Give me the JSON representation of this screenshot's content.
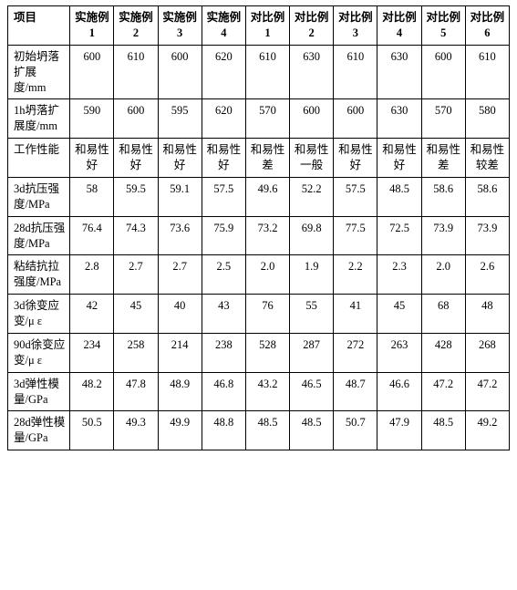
{
  "table": {
    "columns": [
      "项目",
      "实施例1",
      "实施例2",
      "实施例3",
      "实施例4",
      "对比例1",
      "对比例2",
      "对比例3",
      "对比例4",
      "对比例5",
      "对比例6"
    ],
    "rows": [
      {
        "label": "初始坍落扩展度/mm",
        "vals": [
          "600",
          "610",
          "600",
          "620",
          "610",
          "630",
          "610",
          "630",
          "600",
          "610"
        ]
      },
      {
        "label": "1h坍落扩展度/mm",
        "vals": [
          "590",
          "600",
          "595",
          "620",
          "570",
          "600",
          "600",
          "630",
          "570",
          "580"
        ]
      },
      {
        "label": "工作性能",
        "vals": [
          "和易性好",
          "和易性好",
          "和易性好",
          "和易性好",
          "和易性差",
          "和易性一般",
          "和易性好",
          "和易性好",
          "和易性差",
          "和易性较差"
        ]
      },
      {
        "label": "3d抗压强度/MPa",
        "vals": [
          "58",
          "59.5",
          "59.1",
          "57.5",
          "49.6",
          "52.2",
          "57.5",
          "48.5",
          "58.6",
          "58.6"
        ]
      },
      {
        "label": "28d抗压强度/MPa",
        "vals": [
          "76.4",
          "74.3",
          "73.6",
          "75.9",
          "73.2",
          "69.8",
          "77.5",
          "72.5",
          "73.9",
          "73.9"
        ]
      },
      {
        "label": "粘结抗拉强度/MPa",
        "vals": [
          "2.8",
          "2.7",
          "2.7",
          "2.5",
          "2.0",
          "1.9",
          "2.2",
          "2.3",
          "2.0",
          "2.6"
        ]
      },
      {
        "label": "3d徐变应变/μ ε",
        "vals": [
          "42",
          "45",
          "40",
          "43",
          "76",
          "55",
          "41",
          "45",
          "68",
          "48"
        ]
      },
      {
        "label": "90d徐变应变/μ ε",
        "vals": [
          "234",
          "258",
          "214",
          "238",
          "528",
          "287",
          "272",
          "263",
          "428",
          "268"
        ]
      },
      {
        "label": "3d弹性模量/GPa",
        "vals": [
          "48.2",
          "47.8",
          "48.9",
          "46.8",
          "43.2",
          "46.5",
          "48.7",
          "46.6",
          "47.2",
          "47.2"
        ]
      },
      {
        "label": "28d弹性模量/GPa",
        "vals": [
          "50.5",
          "49.3",
          "49.9",
          "48.8",
          "48.5",
          "48.5",
          "50.7",
          "47.9",
          "48.5",
          "49.2"
        ]
      }
    ]
  }
}
